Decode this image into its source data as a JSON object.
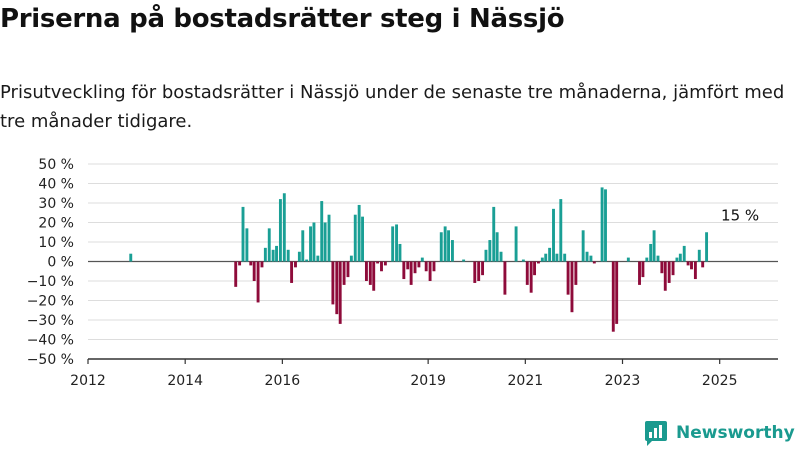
{
  "title": "Priserna på bostadsrätter steg i Nässjö",
  "subtitle": "Prisutveckling för bostadsrätter i Nässjö under de senaste tre månaderna, jämfört med tre månader tidigare.",
  "brand": "Newsworthy",
  "colors": {
    "positive": "#1a9f95",
    "negative": "#8e0b3a",
    "grid": "#dddddd",
    "axis": "#333333",
    "brand": "#1a9a8f"
  },
  "chart_data": {
    "type": "bar",
    "ylabel": "",
    "xlabel": "",
    "ylim": [
      -50,
      50
    ],
    "y_ticks": [
      50,
      40,
      30,
      20,
      10,
      0,
      -10,
      -20,
      -30,
      -40,
      -50
    ],
    "y_tick_suffix": " %",
    "x_ticks": [
      2012,
      2014,
      2016,
      2019,
      2021,
      2023,
      2025
    ],
    "x_range": [
      2012,
      2026.2
    ],
    "annotation": {
      "text": "15 %",
      "year": 2025.42,
      "value": 15
    },
    "series": [
      {
        "values": [
          [
            2012.88,
            4
          ],
          [
            2015.04,
            -13
          ],
          [
            2015.12,
            -2
          ],
          [
            2015.19,
            28
          ],
          [
            2015.27,
            17
          ],
          [
            2015.35,
            -2
          ],
          [
            2015.42,
            -10
          ],
          [
            2015.5,
            -21
          ],
          [
            2015.58,
            -3
          ],
          [
            2015.65,
            7
          ],
          [
            2015.73,
            17
          ],
          [
            2015.81,
            6
          ],
          [
            2015.88,
            8
          ],
          [
            2015.96,
            32
          ],
          [
            2016.04,
            35
          ],
          [
            2016.12,
            6
          ],
          [
            2016.19,
            -11
          ],
          [
            2016.27,
            -3
          ],
          [
            2016.35,
            5
          ],
          [
            2016.42,
            16
          ],
          [
            2016.5,
            1
          ],
          [
            2016.58,
            18
          ],
          [
            2016.65,
            20
          ],
          [
            2016.73,
            3
          ],
          [
            2016.81,
            31
          ],
          [
            2016.88,
            20
          ],
          [
            2016.96,
            24
          ],
          [
            2017.04,
            -22
          ],
          [
            2017.12,
            -27
          ],
          [
            2017.19,
            -32
          ],
          [
            2017.27,
            -12
          ],
          [
            2017.35,
            -8
          ],
          [
            2017.42,
            3
          ],
          [
            2017.5,
            24
          ],
          [
            2017.58,
            29
          ],
          [
            2017.65,
            23
          ],
          [
            2017.73,
            -10
          ],
          [
            2017.81,
            -12
          ],
          [
            2017.88,
            -15
          ],
          [
            2017.96,
            -1
          ],
          [
            2018.04,
            -5
          ],
          [
            2018.12,
            -2
          ],
          [
            2018.27,
            18
          ],
          [
            2018.35,
            19
          ],
          [
            2018.42,
            9
          ],
          [
            2018.5,
            -9
          ],
          [
            2018.58,
            -4
          ],
          [
            2018.65,
            -12
          ],
          [
            2018.73,
            -6
          ],
          [
            2018.81,
            -3
          ],
          [
            2018.88,
            2
          ],
          [
            2018.96,
            -5
          ],
          [
            2019.04,
            -10
          ],
          [
            2019.12,
            -5
          ],
          [
            2019.27,
            15
          ],
          [
            2019.35,
            18
          ],
          [
            2019.42,
            16
          ],
          [
            2019.5,
            11
          ],
          [
            2019.73,
            1
          ],
          [
            2019.96,
            -11
          ],
          [
            2020.04,
            -10
          ],
          [
            2020.12,
            -7
          ],
          [
            2020.19,
            6
          ],
          [
            2020.27,
            11
          ],
          [
            2020.35,
            28
          ],
          [
            2020.42,
            15
          ],
          [
            2020.5,
            5
          ],
          [
            2020.58,
            -17
          ],
          [
            2020.81,
            18
          ],
          [
            2020.96,
            1
          ],
          [
            2021.04,
            -12
          ],
          [
            2021.12,
            -16
          ],
          [
            2021.19,
            -7
          ],
          [
            2021.27,
            -1
          ],
          [
            2021.35,
            2
          ],
          [
            2021.42,
            4
          ],
          [
            2021.5,
            7
          ],
          [
            2021.58,
            27
          ],
          [
            2021.65,
            4
          ],
          [
            2021.73,
            32
          ],
          [
            2021.81,
            4
          ],
          [
            2021.88,
            -17
          ],
          [
            2021.96,
            -26
          ],
          [
            2022.04,
            -12
          ],
          [
            2022.19,
            16
          ],
          [
            2022.27,
            5
          ],
          [
            2022.35,
            3
          ],
          [
            2022.42,
            -1
          ],
          [
            2022.58,
            38
          ],
          [
            2022.65,
            37
          ],
          [
            2022.81,
            -36
          ],
          [
            2022.88,
            -32
          ],
          [
            2023.12,
            2
          ],
          [
            2023.35,
            -12
          ],
          [
            2023.42,
            -8
          ],
          [
            2023.5,
            2
          ],
          [
            2023.58,
            9
          ],
          [
            2023.65,
            16
          ],
          [
            2023.73,
            3
          ],
          [
            2023.81,
            -6
          ],
          [
            2023.88,
            -15
          ],
          [
            2023.96,
            -11
          ],
          [
            2024.04,
            -7
          ],
          [
            2024.12,
            2
          ],
          [
            2024.19,
            4
          ],
          [
            2024.27,
            8
          ],
          [
            2024.35,
            -2
          ],
          [
            2024.42,
            -4
          ],
          [
            2024.5,
            -9
          ],
          [
            2024.58,
            6
          ],
          [
            2024.65,
            -3
          ],
          [
            2024.73,
            15
          ]
        ]
      }
    ]
  }
}
